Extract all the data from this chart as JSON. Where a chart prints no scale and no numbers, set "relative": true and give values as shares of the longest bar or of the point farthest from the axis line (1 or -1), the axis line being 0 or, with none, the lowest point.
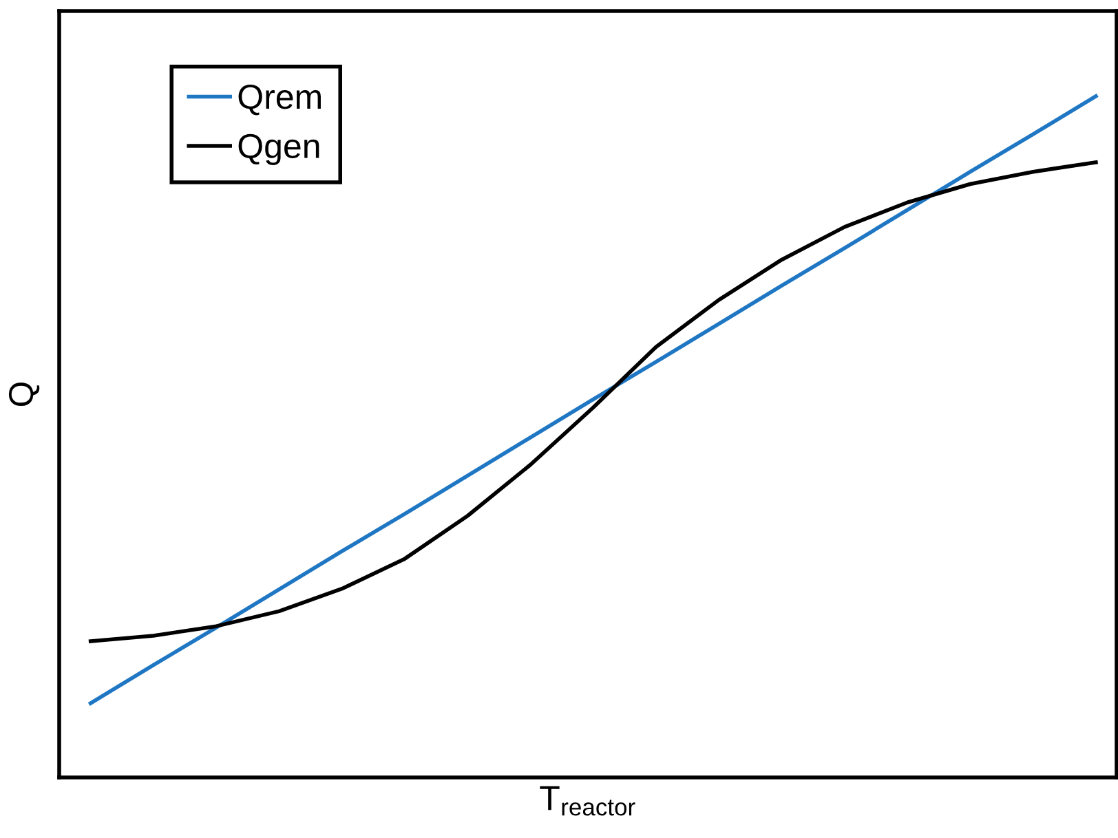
{
  "chart_data": {
    "type": "line",
    "relative": true,
    "xlabel": "T$_{reactor}$",
    "ylabel": "Q",
    "legend": "top left",
    "marker": "none",
    "line_style": "solid",
    "tick_labels": false,
    "categories": [
      null,
      null,
      null,
      null,
      null,
      null,
      null,
      null,
      null,
      null,
      null,
      null,
      null,
      null,
      null,
      null,
      null
    ],
    "series": [
      {
        "name": "Qrem",
        "color": "#1f77c4",
        "values": [
          0.109,
          0.165,
          0.22,
          0.276,
          0.332,
          0.387,
          0.443,
          0.499,
          0.555,
          0.61,
          0.666,
          0.722,
          0.777,
          0.833,
          0.889,
          0.944,
          1.0
        ]
      },
      {
        "name": "Qgen",
        "color": "#000000",
        "values": [
          0.2,
          0.208,
          0.222,
          0.244,
          0.277,
          0.321,
          0.384,
          0.459,
          0.543,
          0.632,
          0.701,
          0.76,
          0.808,
          0.844,
          0.871,
          0.889,
          0.903
        ]
      }
    ]
  }
}
